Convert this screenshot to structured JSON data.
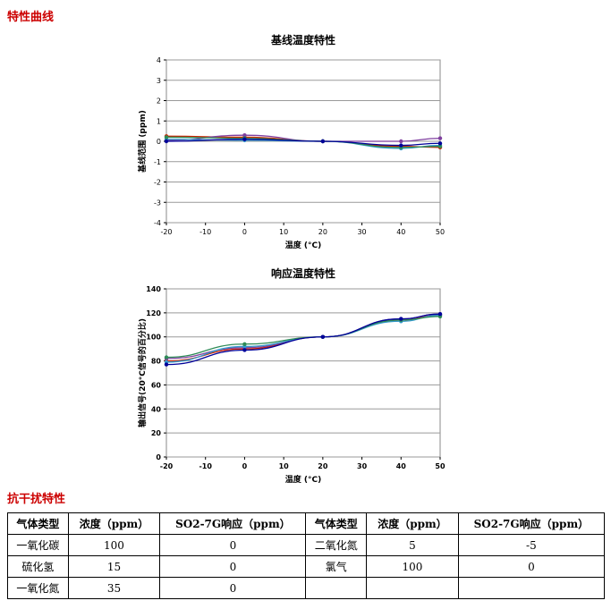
{
  "section1_title": "特性曲线",
  "section2_title": "抗干扰特性",
  "chart_data": [
    {
      "type": "line",
      "title": "基线温度特性",
      "xlabel": "温度 (°C)",
      "ylabel": "基线范围 (ppm)",
      "x": [
        -20,
        -10,
        0,
        10,
        20,
        30,
        40,
        50
      ],
      "x_ticks": [
        "-20",
        "-10",
        "0",
        "10",
        "20",
        "30",
        "40",
        "50"
      ],
      "y_ticks": [
        "4",
        "3",
        "2",
        "1",
        "0",
        "-1",
        "-2",
        "-3",
        "-4"
      ],
      "ylim": [
        -4,
        4
      ],
      "grid": true,
      "series": [
        {
          "color": "#cc2200",
          "points": [
            [
              -20,
              0.25
            ],
            [
              0,
              0.2
            ],
            [
              20,
              0.0
            ],
            [
              40,
              -0.25
            ],
            [
              50,
              -0.3
            ]
          ]
        },
        {
          "color": "#7f3f9f",
          "points": [
            [
              -20,
              0.05
            ],
            [
              0,
              0.3
            ],
            [
              20,
              0.0
            ],
            [
              40,
              0.0
            ],
            [
              50,
              0.15
            ]
          ]
        },
        {
          "color": "#3399cc",
          "points": [
            [
              -20,
              0.1
            ],
            [
              0,
              0.05
            ],
            [
              20,
              0.0
            ],
            [
              40,
              -0.35
            ],
            [
              50,
              -0.2
            ]
          ]
        },
        {
          "color": "#2e8b57",
          "points": [
            [
              -20,
              0.2
            ],
            [
              0,
              0.15
            ],
            [
              20,
              0.0
            ],
            [
              40,
              -0.3
            ],
            [
              50,
              -0.25
            ]
          ]
        },
        {
          "color": "#000099",
          "points": [
            [
              -20,
              0.0
            ],
            [
              0,
              0.1
            ],
            [
              20,
              0.0
            ],
            [
              40,
              -0.2
            ],
            [
              50,
              -0.1
            ]
          ]
        }
      ]
    },
    {
      "type": "line",
      "title": "响应温度特性",
      "xlabel": "温度 (°C)",
      "ylabel": "输出信号(20°C信号的百分比)",
      "x": [
        -20,
        -10,
        0,
        10,
        20,
        30,
        40,
        50
      ],
      "x_ticks": [
        "-20",
        "-10",
        "0",
        "10",
        "20",
        "30",
        "40",
        "50"
      ],
      "y_ticks": [
        "140",
        "120",
        "100",
        "80",
        "60",
        "40",
        "20",
        "0"
      ],
      "ylim": [
        0,
        140
      ],
      "grid": true,
      "series": [
        {
          "color": "#cc2200",
          "points": [
            [
              -20,
              80
            ],
            [
              0,
              90
            ],
            [
              20,
              100
            ],
            [
              40,
              114
            ],
            [
              50,
              118
            ]
          ]
        },
        {
          "color": "#7f3f9f",
          "points": [
            [
              -20,
              82
            ],
            [
              0,
              91
            ],
            [
              20,
              100
            ],
            [
              40,
              115
            ],
            [
              50,
              119
            ]
          ]
        },
        {
          "color": "#3399cc",
          "points": [
            [
              -20,
              79
            ],
            [
              0,
              92
            ],
            [
              20,
              100
            ],
            [
              40,
              113
            ],
            [
              50,
              118
            ]
          ]
        },
        {
          "color": "#2e8b57",
          "points": [
            [
              -20,
              83
            ],
            [
              0,
              94
            ],
            [
              20,
              100
            ],
            [
              40,
              114
            ],
            [
              50,
              117
            ]
          ]
        },
        {
          "color": "#000099",
          "points": [
            [
              -20,
              77
            ],
            [
              0,
              89
            ],
            [
              20,
              100
            ],
            [
              40,
              115
            ],
            [
              50,
              119
            ]
          ]
        }
      ]
    }
  ],
  "table": {
    "headers": [
      "气体类型",
      "浓度（ppm）",
      "SO2-7G响应（ppm）",
      "气体类型",
      "浓度（ppm）",
      "SO2-7G响应（ppm）"
    ],
    "rows": [
      [
        "一氧化碳",
        "100",
        "0",
        "二氧化氮",
        "5",
        "-5"
      ],
      [
        "硫化氢",
        "15",
        "0",
        "氯气",
        "100",
        "0"
      ],
      [
        "一氧化氮",
        "35",
        "0",
        "",
        "",
        ""
      ]
    ]
  }
}
